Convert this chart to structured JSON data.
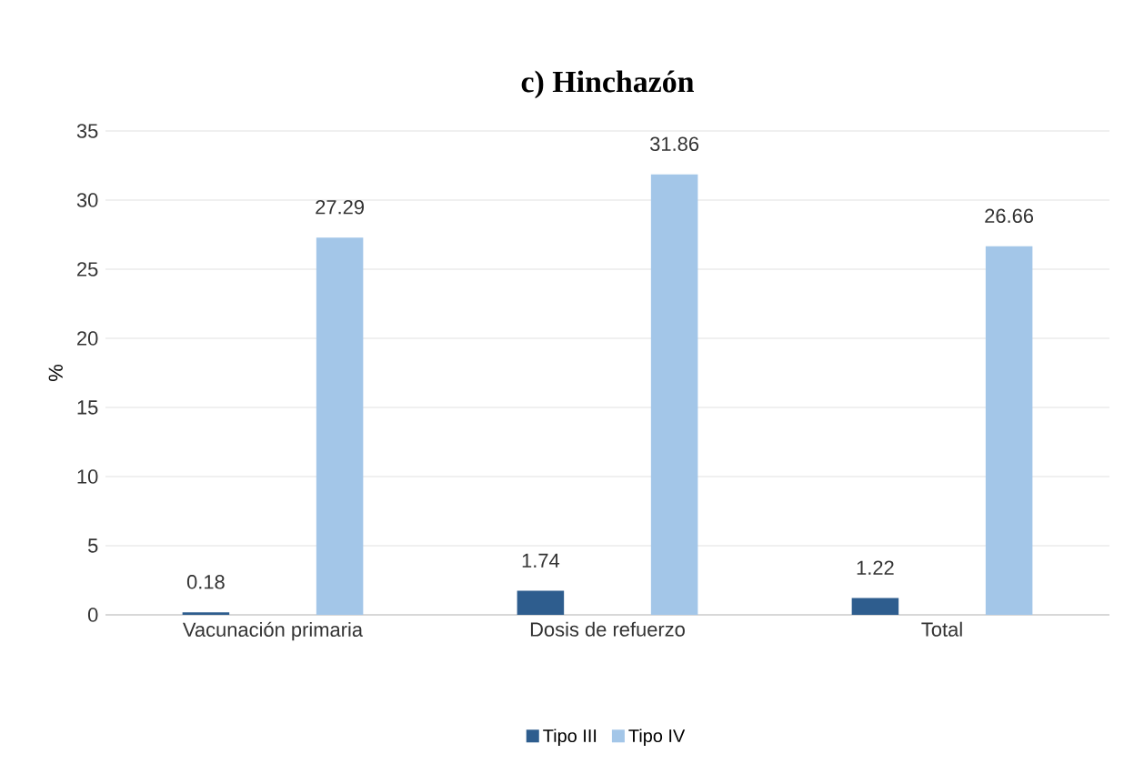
{
  "chart_data": {
    "type": "bar",
    "title": "c) Hinchazón",
    "ylabel": "%",
    "categories": [
      "Vacunación primaria",
      "Dosis de refuerzo",
      "Total"
    ],
    "series": [
      {
        "name": "Tipo III",
        "color": "#2e5d8e",
        "values": [
          0.18,
          1.74,
          1.22
        ]
      },
      {
        "name": "Tipo IV",
        "color": "#a3c6e8",
        "values": [
          27.29,
          31.86,
          26.66
        ]
      }
    ],
    "ylim": [
      0,
      35
    ],
    "yticks": [
      0,
      5,
      10,
      15,
      20,
      25,
      30,
      35
    ],
    "grid": "y",
    "legend": "bottom",
    "data_labels": true
  }
}
